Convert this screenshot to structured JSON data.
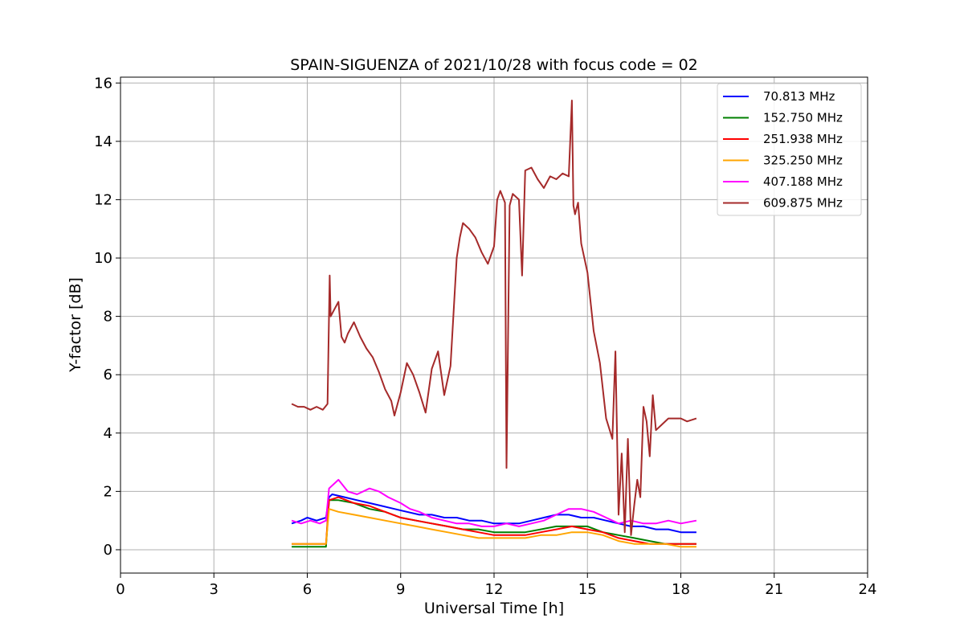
{
  "chart_data": {
    "type": "line",
    "title": "SPAIN-SIGUENZA of 2021/10/28 with focus code = 02",
    "xlabel": "Universal Time [h]",
    "ylabel": "Y-factor [dB]",
    "xlim": [
      0,
      24
    ],
    "ylim": [
      -0.8,
      16.2
    ],
    "xticks": [
      0,
      3,
      6,
      9,
      12,
      15,
      18,
      21,
      24
    ],
    "yticks": [
      0,
      2,
      4,
      6,
      8,
      10,
      12,
      14,
      16
    ],
    "grid": true,
    "legend_position": "top-right",
    "series": [
      {
        "name": " 70.813 MHz",
        "color": "#0000ff",
        "x": [
          5.5,
          5.8,
          6.0,
          6.3,
          6.6,
          6.7,
          6.8,
          7.2,
          7.6,
          8.0,
          8.4,
          8.8,
          9.2,
          9.6,
          10.0,
          10.4,
          10.8,
          11.2,
          11.6,
          12.0,
          12.4,
          12.8,
          13.2,
          13.6,
          14.0,
          14.4,
          14.8,
          15.2,
          15.6,
          16.0,
          16.4,
          16.8,
          17.2,
          17.6,
          18.0,
          18.5
        ],
        "y": [
          0.9,
          1.0,
          1.1,
          1.0,
          1.1,
          1.8,
          1.9,
          1.8,
          1.7,
          1.6,
          1.5,
          1.4,
          1.3,
          1.2,
          1.2,
          1.1,
          1.1,
          1.0,
          1.0,
          0.9,
          0.9,
          0.9,
          1.0,
          1.1,
          1.2,
          1.2,
          1.1,
          1.1,
          1.0,
          0.9,
          0.8,
          0.8,
          0.7,
          0.7,
          0.6,
          0.6
        ]
      },
      {
        "name": "152.750 MHz",
        "color": "#008000",
        "x": [
          5.5,
          6.0,
          6.6,
          6.7,
          7.0,
          7.5,
          8.0,
          8.5,
          9.0,
          9.5,
          10.0,
          10.5,
          11.0,
          11.5,
          12.0,
          12.5,
          13.0,
          13.5,
          14.0,
          14.5,
          15.0,
          15.5,
          16.0,
          16.5,
          17.0,
          17.5,
          18.0,
          18.5
        ],
        "y": [
          0.1,
          0.1,
          0.1,
          1.7,
          1.7,
          1.6,
          1.4,
          1.3,
          1.1,
          1.0,
          0.9,
          0.8,
          0.7,
          0.7,
          0.6,
          0.6,
          0.6,
          0.7,
          0.8,
          0.8,
          0.8,
          0.6,
          0.5,
          0.4,
          0.3,
          0.2,
          0.2,
          0.2
        ]
      },
      {
        "name": "251.938 MHz",
        "color": "#ff0000",
        "x": [
          5.5,
          6.0,
          6.6,
          6.7,
          7.0,
          7.5,
          8.0,
          8.5,
          9.0,
          9.5,
          10.0,
          10.5,
          11.0,
          11.5,
          12.0,
          12.5,
          13.0,
          13.5,
          14.0,
          14.5,
          15.0,
          15.5,
          16.0,
          16.5,
          17.0,
          17.5,
          18.0,
          18.5
        ],
        "y": [
          0.2,
          0.2,
          0.2,
          1.7,
          1.8,
          1.6,
          1.5,
          1.3,
          1.1,
          1.0,
          0.9,
          0.8,
          0.7,
          0.6,
          0.5,
          0.5,
          0.5,
          0.6,
          0.7,
          0.8,
          0.7,
          0.6,
          0.4,
          0.3,
          0.2,
          0.2,
          0.2,
          0.2
        ]
      },
      {
        "name": "325.250 MHz",
        "color": "#ffa500",
        "x": [
          5.5,
          6.0,
          6.6,
          6.7,
          7.0,
          7.5,
          8.0,
          8.5,
          9.0,
          9.5,
          10.0,
          10.5,
          11.0,
          11.5,
          12.0,
          12.5,
          13.0,
          13.5,
          14.0,
          14.5,
          15.0,
          15.5,
          16.0,
          16.5,
          17.0,
          17.5,
          18.0,
          18.5
        ],
        "y": [
          0.2,
          0.2,
          0.2,
          1.4,
          1.3,
          1.2,
          1.1,
          1.0,
          0.9,
          0.8,
          0.7,
          0.6,
          0.5,
          0.4,
          0.4,
          0.4,
          0.4,
          0.5,
          0.5,
          0.6,
          0.6,
          0.5,
          0.3,
          0.2,
          0.2,
          0.2,
          0.1,
          0.1
        ]
      },
      {
        "name": "407.188 MHz",
        "color": "#ff00ff",
        "x": [
          5.5,
          5.8,
          6.1,
          6.4,
          6.6,
          6.7,
          7.0,
          7.3,
          7.6,
          8.0,
          8.3,
          8.6,
          9.0,
          9.3,
          9.6,
          10.0,
          10.4,
          10.8,
          11.2,
          11.6,
          12.0,
          12.4,
          12.8,
          13.2,
          13.6,
          14.0,
          14.4,
          14.8,
          15.2,
          15.6,
          16.0,
          16.4,
          16.8,
          17.2,
          17.6,
          18.0,
          18.5
        ],
        "y": [
          1.0,
          0.9,
          1.0,
          0.9,
          1.0,
          2.1,
          2.4,
          2.0,
          1.9,
          2.1,
          2.0,
          1.8,
          1.6,
          1.4,
          1.3,
          1.1,
          1.0,
          0.9,
          0.9,
          0.8,
          0.8,
          0.9,
          0.8,
          0.9,
          1.0,
          1.2,
          1.4,
          1.4,
          1.3,
          1.1,
          0.9,
          1.0,
          0.9,
          0.9,
          1.0,
          0.9,
          1.0
        ]
      },
      {
        "name": "609.875 MHz",
        "color": "#a52a2a",
        "x": [
          5.5,
          5.7,
          5.9,
          6.1,
          6.3,
          6.5,
          6.65,
          6.72,
          6.75,
          6.8,
          6.9,
          7.0,
          7.1,
          7.2,
          7.3,
          7.5,
          7.7,
          7.9,
          8.1,
          8.3,
          8.5,
          8.7,
          8.8,
          9.0,
          9.2,
          9.4,
          9.6,
          9.8,
          10.0,
          10.2,
          10.4,
          10.6,
          10.8,
          10.9,
          11.0,
          11.2,
          11.4,
          11.6,
          11.8,
          12.0,
          12.1,
          12.2,
          12.35,
          12.4,
          12.5,
          12.6,
          12.8,
          12.9,
          13.0,
          13.2,
          13.4,
          13.6,
          13.8,
          14.0,
          14.2,
          14.4,
          14.5,
          14.55,
          14.6,
          14.7,
          14.8,
          15.0,
          15.2,
          15.4,
          15.6,
          15.8,
          15.9,
          16.0,
          16.1,
          16.2,
          16.3,
          16.4,
          16.5,
          16.6,
          16.7,
          16.8,
          16.9,
          17.0,
          17.1,
          17.2,
          17.4,
          17.6,
          17.8,
          18.0,
          18.2,
          18.5
        ],
        "y": [
          5.0,
          4.9,
          4.9,
          4.8,
          4.9,
          4.8,
          5.0,
          9.4,
          8.0,
          8.1,
          8.3,
          8.5,
          7.3,
          7.1,
          7.4,
          7.8,
          7.3,
          6.9,
          6.6,
          6.1,
          5.5,
          5.1,
          4.6,
          5.4,
          6.4,
          6.0,
          5.4,
          4.7,
          6.2,
          6.8,
          5.3,
          6.3,
          10.0,
          10.7,
          11.2,
          11.0,
          10.7,
          10.2,
          9.8,
          10.4,
          12.0,
          12.3,
          11.9,
          2.8,
          11.8,
          12.2,
          12.0,
          9.4,
          13.0,
          13.1,
          12.7,
          12.4,
          12.8,
          12.7,
          12.9,
          12.8,
          15.4,
          11.8,
          11.5,
          11.9,
          10.5,
          9.5,
          7.5,
          6.4,
          4.5,
          3.8,
          6.8,
          1.2,
          3.3,
          0.6,
          3.8,
          0.5,
          1.5,
          2.4,
          1.8,
          4.9,
          4.4,
          3.2,
          5.3,
          4.1,
          4.3,
          4.5,
          4.5,
          4.5,
          4.4,
          4.5
        ]
      }
    ]
  }
}
